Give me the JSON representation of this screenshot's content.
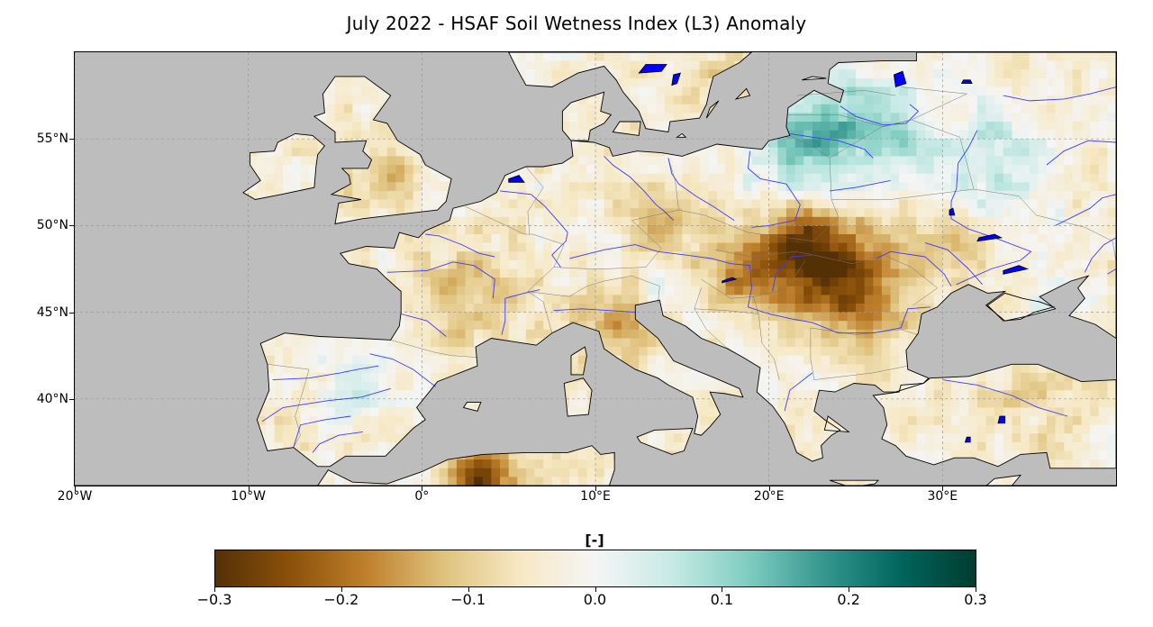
{
  "title": "July 2022 - HSAF Soil Wetness Index (L3) Anomaly",
  "map": {
    "lon_range": [
      -20,
      40
    ],
    "lat_range": [
      35,
      60
    ],
    "lon_ticks": [
      {
        "value": -20,
        "label": "20°W"
      },
      {
        "value": -10,
        "label": "10°W"
      },
      {
        "value": 0,
        "label": "0°"
      },
      {
        "value": 10,
        "label": "10°E"
      },
      {
        "value": 20,
        "label": "20°E"
      },
      {
        "value": 30,
        "label": "30°E"
      }
    ],
    "lat_ticks": [
      {
        "value": 55,
        "label": "55°N"
      },
      {
        "value": 50,
        "label": "50°N"
      },
      {
        "value": 45,
        "label": "45°N"
      },
      {
        "value": 40,
        "label": "40°N"
      }
    ],
    "ocean_color": "#bdbdbd",
    "water_body_color": "#0000ff",
    "river_color": "#3b3bff",
    "grid_style": "dashed"
  },
  "colorbar": {
    "label": "[-]",
    "range": [
      -0.3,
      0.3
    ],
    "ticks": [
      {
        "value": -0.3,
        "label": "−0.3"
      },
      {
        "value": -0.2,
        "label": "−0.2"
      },
      {
        "value": -0.1,
        "label": "−0.1"
      },
      {
        "value": 0.0,
        "label": "0.0"
      },
      {
        "value": 0.1,
        "label": "0.1"
      },
      {
        "value": 0.2,
        "label": "0.2"
      },
      {
        "value": 0.3,
        "label": "0.3"
      }
    ],
    "colors": [
      "#543005",
      "#8c510a",
      "#bf812d",
      "#dfc27d",
      "#f6e8c3",
      "#f5f5f5",
      "#c7eae5",
      "#80cdc1",
      "#35978f",
      "#01665e",
      "#003c30"
    ]
  }
}
